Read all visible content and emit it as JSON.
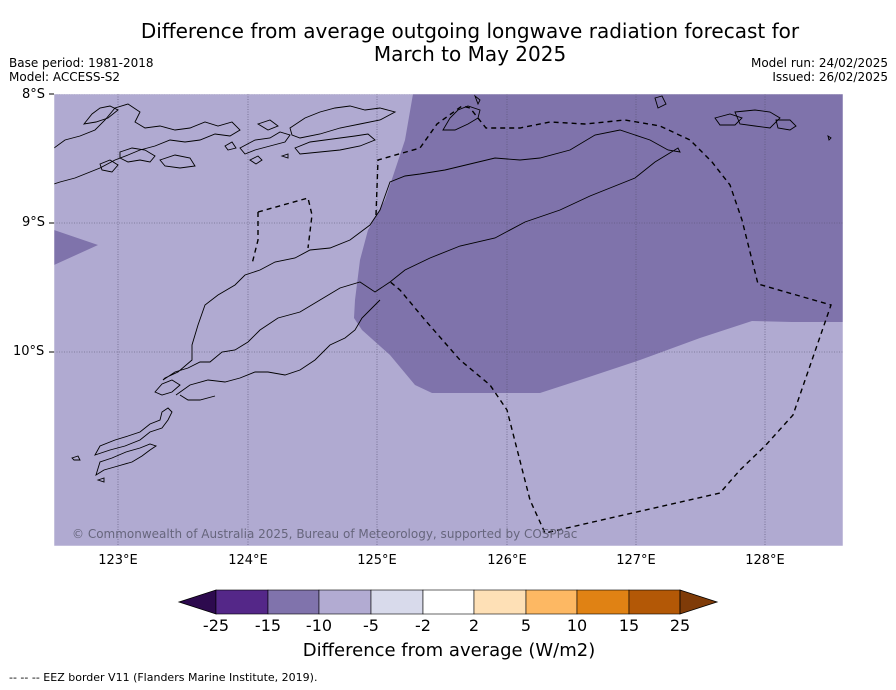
{
  "title_line1": "Difference from average outgoing longwave radiation forecast for",
  "title_line2": "March to May 2025",
  "base_period": "Base period: 1981-2018",
  "model": "Model: ACCESS-S2",
  "model_run": "Model run: 24/02/2025",
  "issued": "Issued: 26/02/2025",
  "lat_labels": [
    "8°S",
    "9°S",
    "10°S"
  ],
  "lon_labels": [
    "123°E",
    "124°E",
    "125°E",
    "126°E",
    "127°E",
    "128°E"
  ],
  "copyright": "© Commonwealth of Australia 2025, Bureau of Meteorology, supported by COSPPac",
  "colorbar": {
    "ticks": [
      "-25",
      "-15",
      "-10",
      "-5",
      "-2",
      "2",
      "5",
      "10",
      "15",
      "25"
    ],
    "colors": [
      "#2d0a4e",
      "#542788",
      "#8073ac",
      "#b2abd2",
      "#d8daeb",
      "#ffffff",
      "#fee0b6",
      "#fdb863",
      "#e08214",
      "#b35806",
      "#7f3b08"
    ],
    "title": "Difference from average (W/m2)"
  },
  "footnote": "--  --  -- EEZ border V11 (Flanders Marine Institute, 2019).",
  "map_colors": {
    "background": "#b0aad1",
    "anomaly": "#7f73ab"
  }
}
